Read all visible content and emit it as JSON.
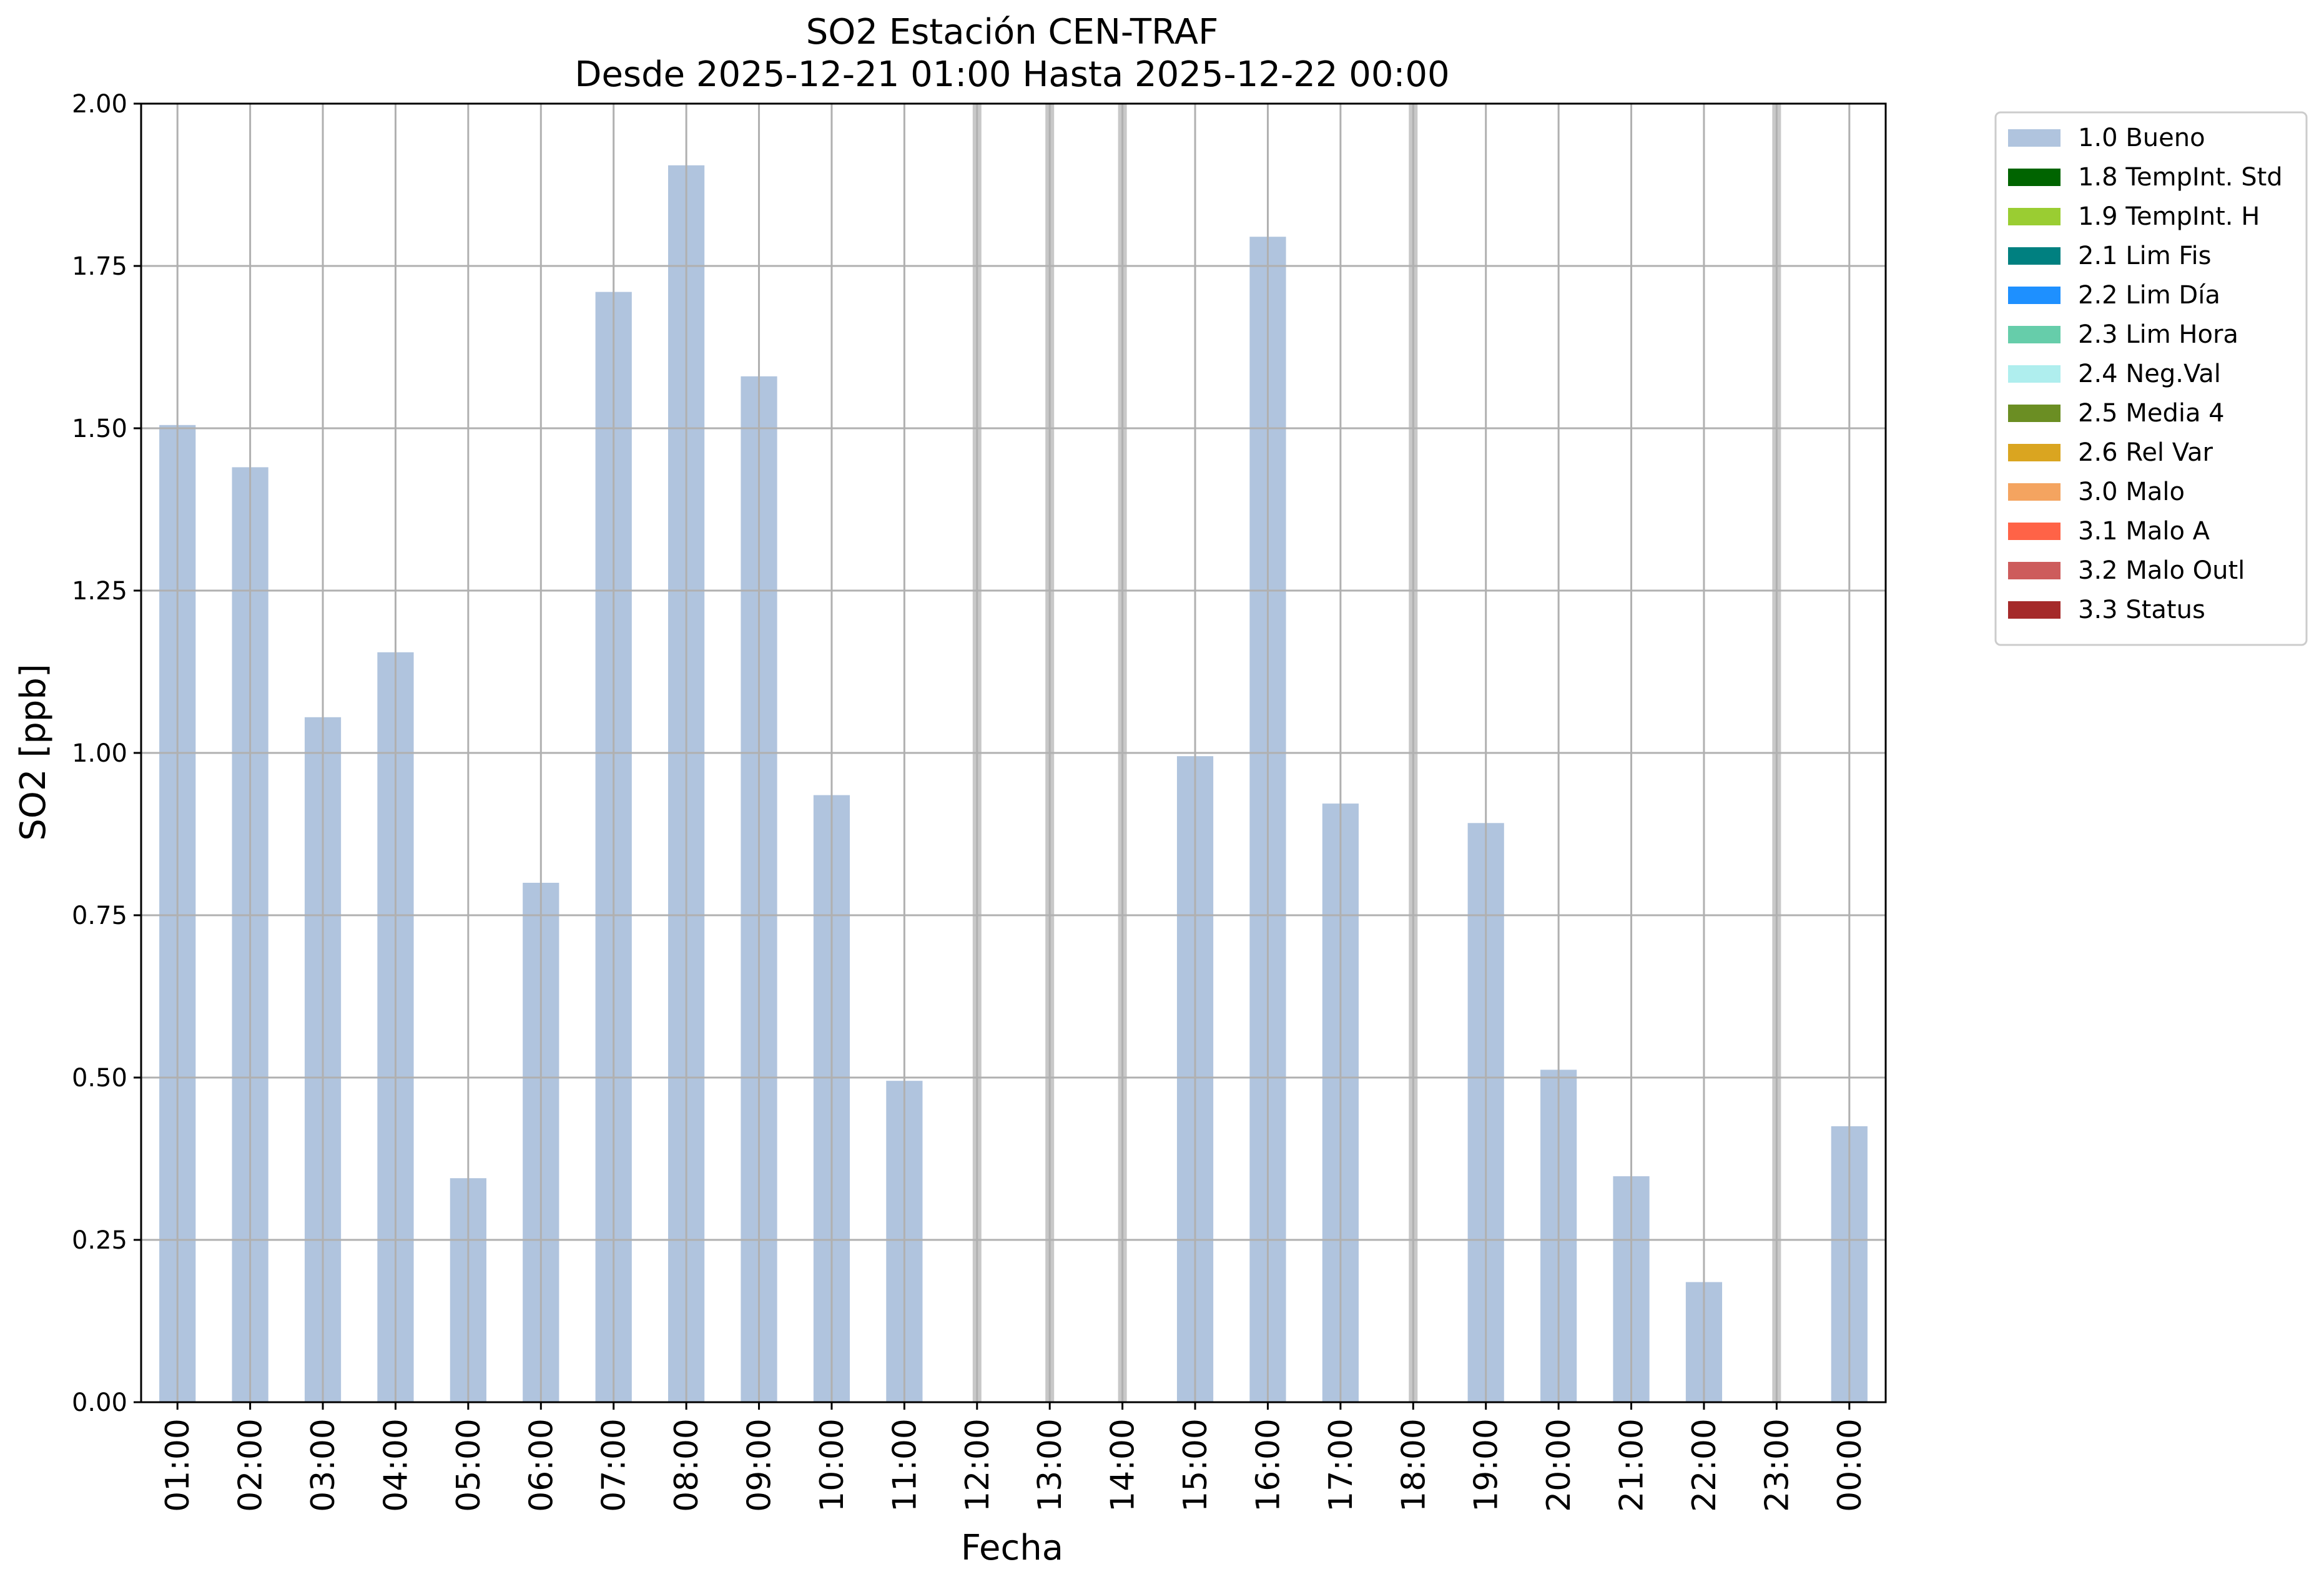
{
  "chart_data": {
    "type": "bar",
    "title": "SO2 Estación CEN-TRAF",
    "subtitle": "Desde 2025-12-21 01:00 Hasta 2025-12-22 00:00",
    "xlabel": "Fecha",
    "ylabel": "SO2 [ppb]",
    "ylim": [
      0,
      2.0
    ],
    "yticks": [
      "0.00",
      "0.25",
      "0.50",
      "0.75",
      "1.00",
      "1.25",
      "1.50",
      "1.75",
      "2.00"
    ],
    "ytick_values": [
      0,
      0.25,
      0.5,
      0.75,
      1.0,
      1.25,
      1.5,
      1.75,
      2.0
    ],
    "grid": true,
    "categories": [
      "01:00",
      "02:00",
      "03:00",
      "04:00",
      "05:00",
      "06:00",
      "07:00",
      "08:00",
      "09:00",
      "10:00",
      "11:00",
      "12:00",
      "13:00",
      "14:00",
      "15:00",
      "16:00",
      "17:00",
      "18:00",
      "19:00",
      "20:00",
      "21:00",
      "22:00",
      "23:00",
      "00:00"
    ],
    "series": [
      {
        "name": "1.0 Bueno",
        "color": "#b0c4de",
        "values": [
          1.505,
          1.44,
          1.055,
          1.155,
          0.345,
          0.8,
          1.71,
          1.905,
          1.58,
          0.935,
          0.495,
          null,
          null,
          null,
          0.995,
          1.795,
          0.922,
          null,
          0.892,
          0.512,
          0.348,
          0.185,
          null,
          0.425
        ]
      }
    ],
    "missing_categories_highlight": [
      "12:00",
      "13:00",
      "14:00",
      "18:00",
      "23:00"
    ],
    "missing_color": "#c8c8c8",
    "legend_placement": "outside-top-right",
    "legend": [
      {
        "label": "1.0 Bueno",
        "color": "#b0c4de"
      },
      {
        "label": "1.8 TempInt. Std",
        "color": "#006400"
      },
      {
        "label": "1.9 TempInt. H",
        "color": "#9acd32"
      },
      {
        "label": "2.1 Lim Fis",
        "color": "#008080"
      },
      {
        "label": "2.2 Lim Día",
        "color": "#1e90ff"
      },
      {
        "label": "2.3 Lim Hora",
        "color": "#66cdaa"
      },
      {
        "label": "2.4 Neg.Val",
        "color": "#afeeee"
      },
      {
        "label": "2.5 Media 4",
        "color": "#6b8e23"
      },
      {
        "label": "2.6 Rel Var",
        "color": "#daa520"
      },
      {
        "label": "3.0 Malo",
        "color": "#f4a460"
      },
      {
        "label": "3.1 Malo A",
        "color": "#ff6347"
      },
      {
        "label": "3.2 Malo Outl",
        "color": "#cd5c5c"
      },
      {
        "label": "3.3 Status",
        "color": "#a52a2a"
      }
    ]
  }
}
